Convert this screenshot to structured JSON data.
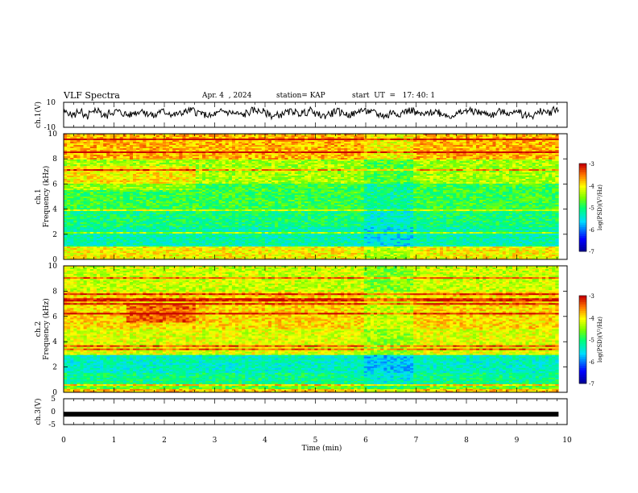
{
  "header": {
    "title": "VLF Spectra",
    "date": "Apr. 4  , 2024",
    "station": "station= KAP",
    "start": "start  UT  =   17: 40: 1"
  },
  "chart_data": [
    {
      "type": "line",
      "panel": "ch1-waveform",
      "ylabel": "ch.1(V)",
      "ylim": [
        -10,
        10
      ],
      "y_tick_labels": [
        "10",
        "-10"
      ],
      "xlim": [
        0,
        10
      ],
      "series": [
        {
          "description_values_approx": [
            3,
            1,
            4,
            -1,
            2,
            5,
            0,
            3,
            4,
            2,
            1,
            3,
            5,
            2,
            0,
            4,
            3,
            1,
            2,
            4,
            5,
            3,
            1,
            0,
            2,
            4,
            3,
            2,
            1,
            3,
            5,
            4,
            2,
            0,
            1,
            3,
            4,
            2,
            3,
            5,
            1,
            0,
            2,
            4,
            3,
            1,
            2,
            5,
            4,
            3,
            1,
            0,
            3,
            2,
            4,
            5,
            2,
            1,
            3,
            4,
            2,
            0,
            1,
            3,
            5,
            4,
            3,
            2,
            1,
            4,
            3,
            2,
            5,
            1,
            0,
            2,
            4,
            3,
            6,
            5
          ]
        }
      ]
    },
    {
      "type": "heatmap",
      "panel": "ch1-spectrogram",
      "ylabel": "Frequency (kHz)",
      "channel_label": "ch.1",
      "ylim": [
        0,
        10
      ],
      "y_ticks": [
        0,
        2,
        4,
        6,
        8,
        10
      ],
      "xlim": [
        0,
        10
      ],
      "colorbar": {
        "label": "log(PSD)(V²/Hz)",
        "ticks": [
          -3,
          -4,
          -5,
          -6,
          -7
        ],
        "range": [
          -7,
          -3
        ]
      }
    },
    {
      "type": "heatmap",
      "panel": "ch2-spectrogram",
      "ylabel": "Frequency (kHz)",
      "channel_label": "ch.2",
      "ylim": [
        0,
        10
      ],
      "y_ticks": [
        0,
        2,
        4,
        6,
        8,
        10
      ],
      "xlim": [
        0,
        10
      ],
      "colorbar": {
        "label": "log(PSD)(V²/Hz)",
        "ticks": [
          -3,
          -4,
          -5,
          -6,
          -7
        ],
        "range": [
          -7,
          -3
        ]
      }
    },
    {
      "type": "line",
      "panel": "ch3-waveform",
      "ylabel": "ch.3(V)",
      "ylim": [
        -5,
        5
      ],
      "y_tick_labels": [
        "5",
        "0",
        "-5"
      ],
      "xlim": [
        0,
        10
      ],
      "series": [
        {
          "values_constant": -1
        }
      ]
    }
  ],
  "xaxis": {
    "label": "Time (min)",
    "ticks": [
      "0",
      "1",
      "2",
      "3",
      "4",
      "5",
      "6",
      "7",
      "8",
      "9",
      "10"
    ],
    "data_end": 9.83
  }
}
